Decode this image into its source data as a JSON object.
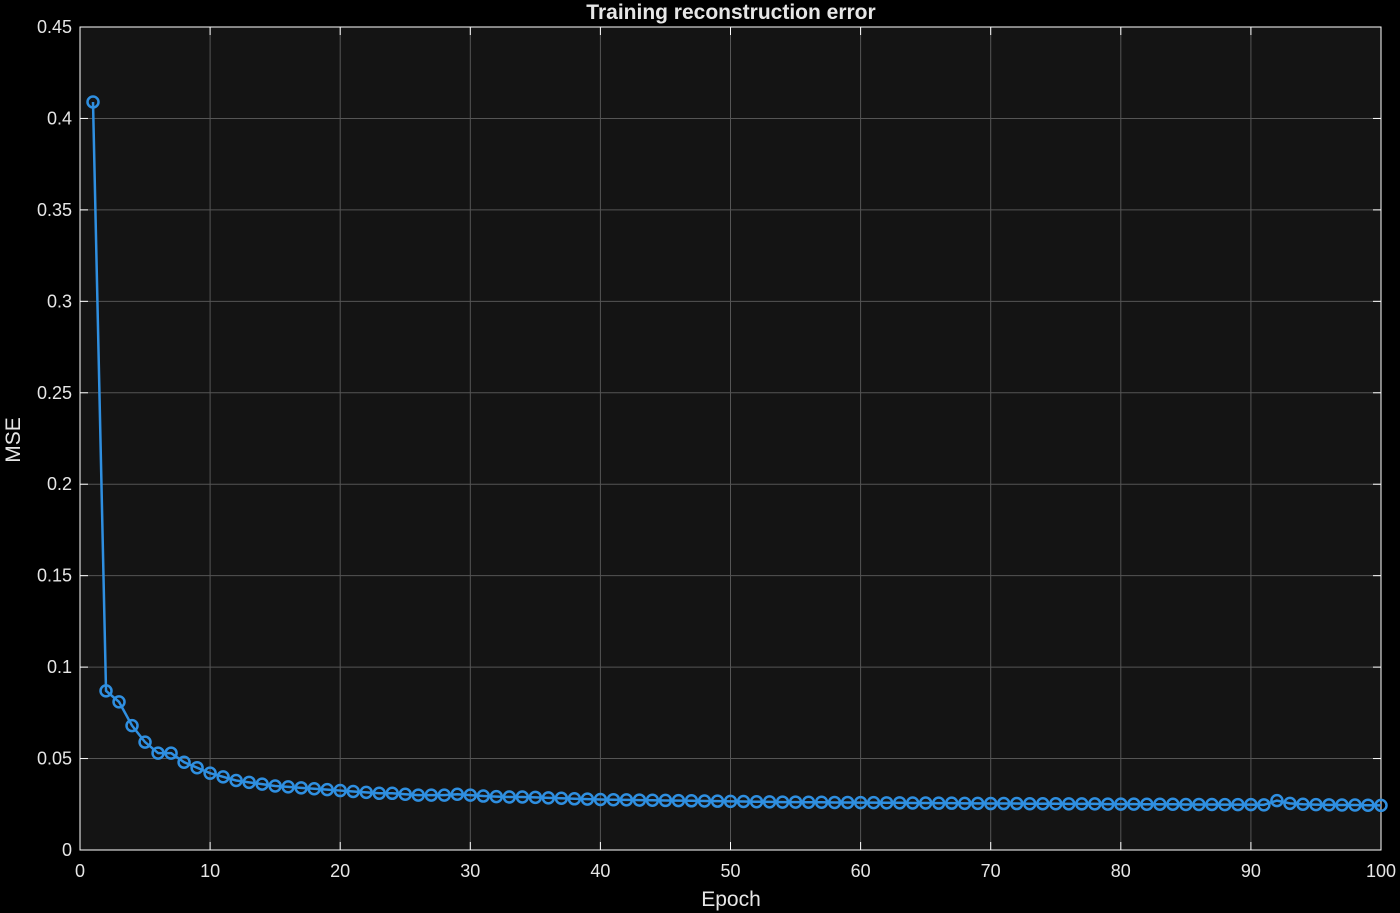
{
  "chart_data": {
    "type": "line",
    "title": "Training reconstruction error",
    "xlabel": "Epoch",
    "ylabel": "MSE",
    "xlim": [
      0,
      100
    ],
    "ylim": [
      0,
      0.45
    ],
    "xticks": [
      0,
      10,
      20,
      30,
      40,
      50,
      60,
      70,
      80,
      90,
      100
    ],
    "yticks": [
      0,
      0.05,
      0.1,
      0.15,
      0.2,
      0.25,
      0.3,
      0.35,
      0.4,
      0.45
    ],
    "xtick_labels": [
      "0",
      "10",
      "20",
      "30",
      "40",
      "50",
      "60",
      "70",
      "80",
      "90",
      "100"
    ],
    "ytick_labels": [
      "0",
      "0.05",
      "0.1",
      "0.15",
      "0.2",
      "0.25",
      "0.3",
      "0.35",
      "0.4",
      "0.45"
    ],
    "grid": true,
    "marker": "circle",
    "colors": {
      "series": "#2f8fe0",
      "background": "#141414",
      "figure": "#000000",
      "grid": "#555555",
      "text": "#e6e6e6"
    },
    "series": [
      {
        "name": "MSE",
        "x": [
          1,
          2,
          3,
          4,
          5,
          6,
          7,
          8,
          9,
          10,
          11,
          12,
          13,
          14,
          15,
          16,
          17,
          18,
          19,
          20,
          21,
          22,
          23,
          24,
          25,
          26,
          27,
          28,
          29,
          30,
          31,
          32,
          33,
          34,
          35,
          36,
          37,
          38,
          39,
          40,
          41,
          42,
          43,
          44,
          45,
          46,
          47,
          48,
          49,
          50,
          51,
          52,
          53,
          54,
          55,
          56,
          57,
          58,
          59,
          60,
          61,
          62,
          63,
          64,
          65,
          66,
          67,
          68,
          69,
          70,
          71,
          72,
          73,
          74,
          75,
          76,
          77,
          78,
          79,
          80,
          81,
          82,
          83,
          84,
          85,
          86,
          87,
          88,
          89,
          90,
          91,
          92,
          93,
          94,
          95,
          96,
          97,
          98,
          99,
          100
        ],
        "values": [
          0.409,
          0.087,
          0.081,
          0.068,
          0.059,
          0.053,
          0.053,
          0.048,
          0.045,
          0.042,
          0.04,
          0.038,
          0.037,
          0.036,
          0.035,
          0.0345,
          0.034,
          0.0335,
          0.033,
          0.0325,
          0.032,
          0.0315,
          0.031,
          0.031,
          0.0305,
          0.03,
          0.03,
          0.03,
          0.0305,
          0.03,
          0.0295,
          0.0292,
          0.029,
          0.029,
          0.0288,
          0.0285,
          0.0283,
          0.028,
          0.0278,
          0.0276,
          0.0275,
          0.0274,
          0.0273,
          0.0272,
          0.0271,
          0.027,
          0.0269,
          0.0268,
          0.0267,
          0.0266,
          0.0265,
          0.0264,
          0.0263,
          0.0262,
          0.0262,
          0.0261,
          0.0261,
          0.026,
          0.026,
          0.0259,
          0.0259,
          0.0258,
          0.0258,
          0.0257,
          0.0257,
          0.0256,
          0.0256,
          0.0255,
          0.0255,
          0.0254,
          0.0254,
          0.0254,
          0.0253,
          0.0253,
          0.0253,
          0.0252,
          0.0252,
          0.0252,
          0.0251,
          0.0251,
          0.0251,
          0.025,
          0.025,
          0.025,
          0.0249,
          0.0249,
          0.0249,
          0.0248,
          0.0248,
          0.0248,
          0.0247,
          0.027,
          0.0255,
          0.025,
          0.0248,
          0.0247,
          0.0246,
          0.0246,
          0.0245,
          0.0244
        ]
      }
    ]
  }
}
